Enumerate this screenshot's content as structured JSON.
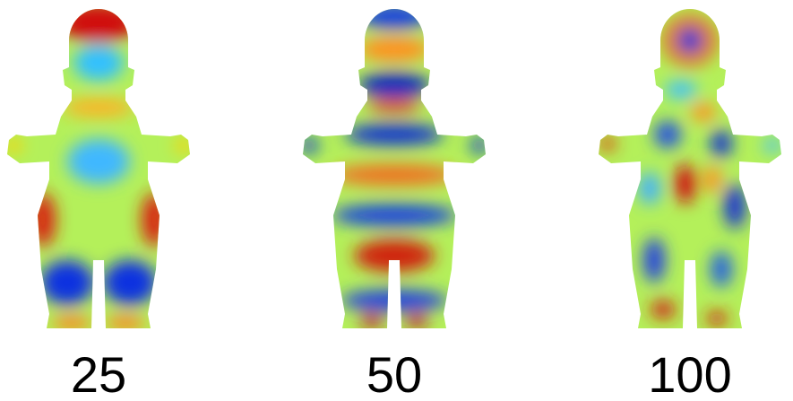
{
  "panels": [
    {
      "label": "25"
    },
    {
      "label": "50"
    },
    {
      "label": "100"
    }
  ]
}
